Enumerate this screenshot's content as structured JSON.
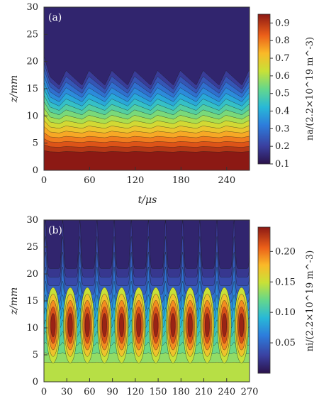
{
  "chart_data": [
    {
      "type": "heatmap",
      "panel_label": "(a)",
      "xlabel": "t/μs",
      "ylabel": "z/mm",
      "colorbar_label": "na/(2.2×10^19 m^-3)",
      "xlim": [
        0,
        270
      ],
      "ylim": [
        0,
        30
      ],
      "x_ticks": [
        "0",
        "60",
        "120",
        "180",
        "240"
      ],
      "y_ticks": [
        "0",
        "5",
        "10",
        "15",
        "20",
        "25",
        "30"
      ],
      "colorbar_range": [
        0.1,
        0.95
      ],
      "colorbar_ticks": [
        "0.1",
        "0.2",
        "0.3",
        "0.4",
        "0.5",
        "0.6",
        "0.7",
        "0.8",
        "0.9"
      ],
      "oscillation_period_us": 30
    },
    {
      "type": "heatmap",
      "panel_label": "(b)",
      "xlabel": "",
      "ylabel": "z/mm",
      "colorbar_label": "ni/(2.2×10^19 m^-3)",
      "xlim": [
        0,
        270
      ],
      "ylim": [
        0,
        30
      ],
      "x_ticks": [
        "0",
        "30",
        "60",
        "90",
        "120",
        "150",
        "180",
        "210",
        "240",
        "270"
      ],
      "y_ticks": [
        "0",
        "5",
        "10",
        "15",
        "20",
        "25",
        "30"
      ],
      "colorbar_range": [
        0.0,
        0.24
      ],
      "colorbar_ticks": [
        "0.05",
        "0.10",
        "0.15",
        "0.20"
      ],
      "oscillation_period_us": 22.5
    }
  ]
}
